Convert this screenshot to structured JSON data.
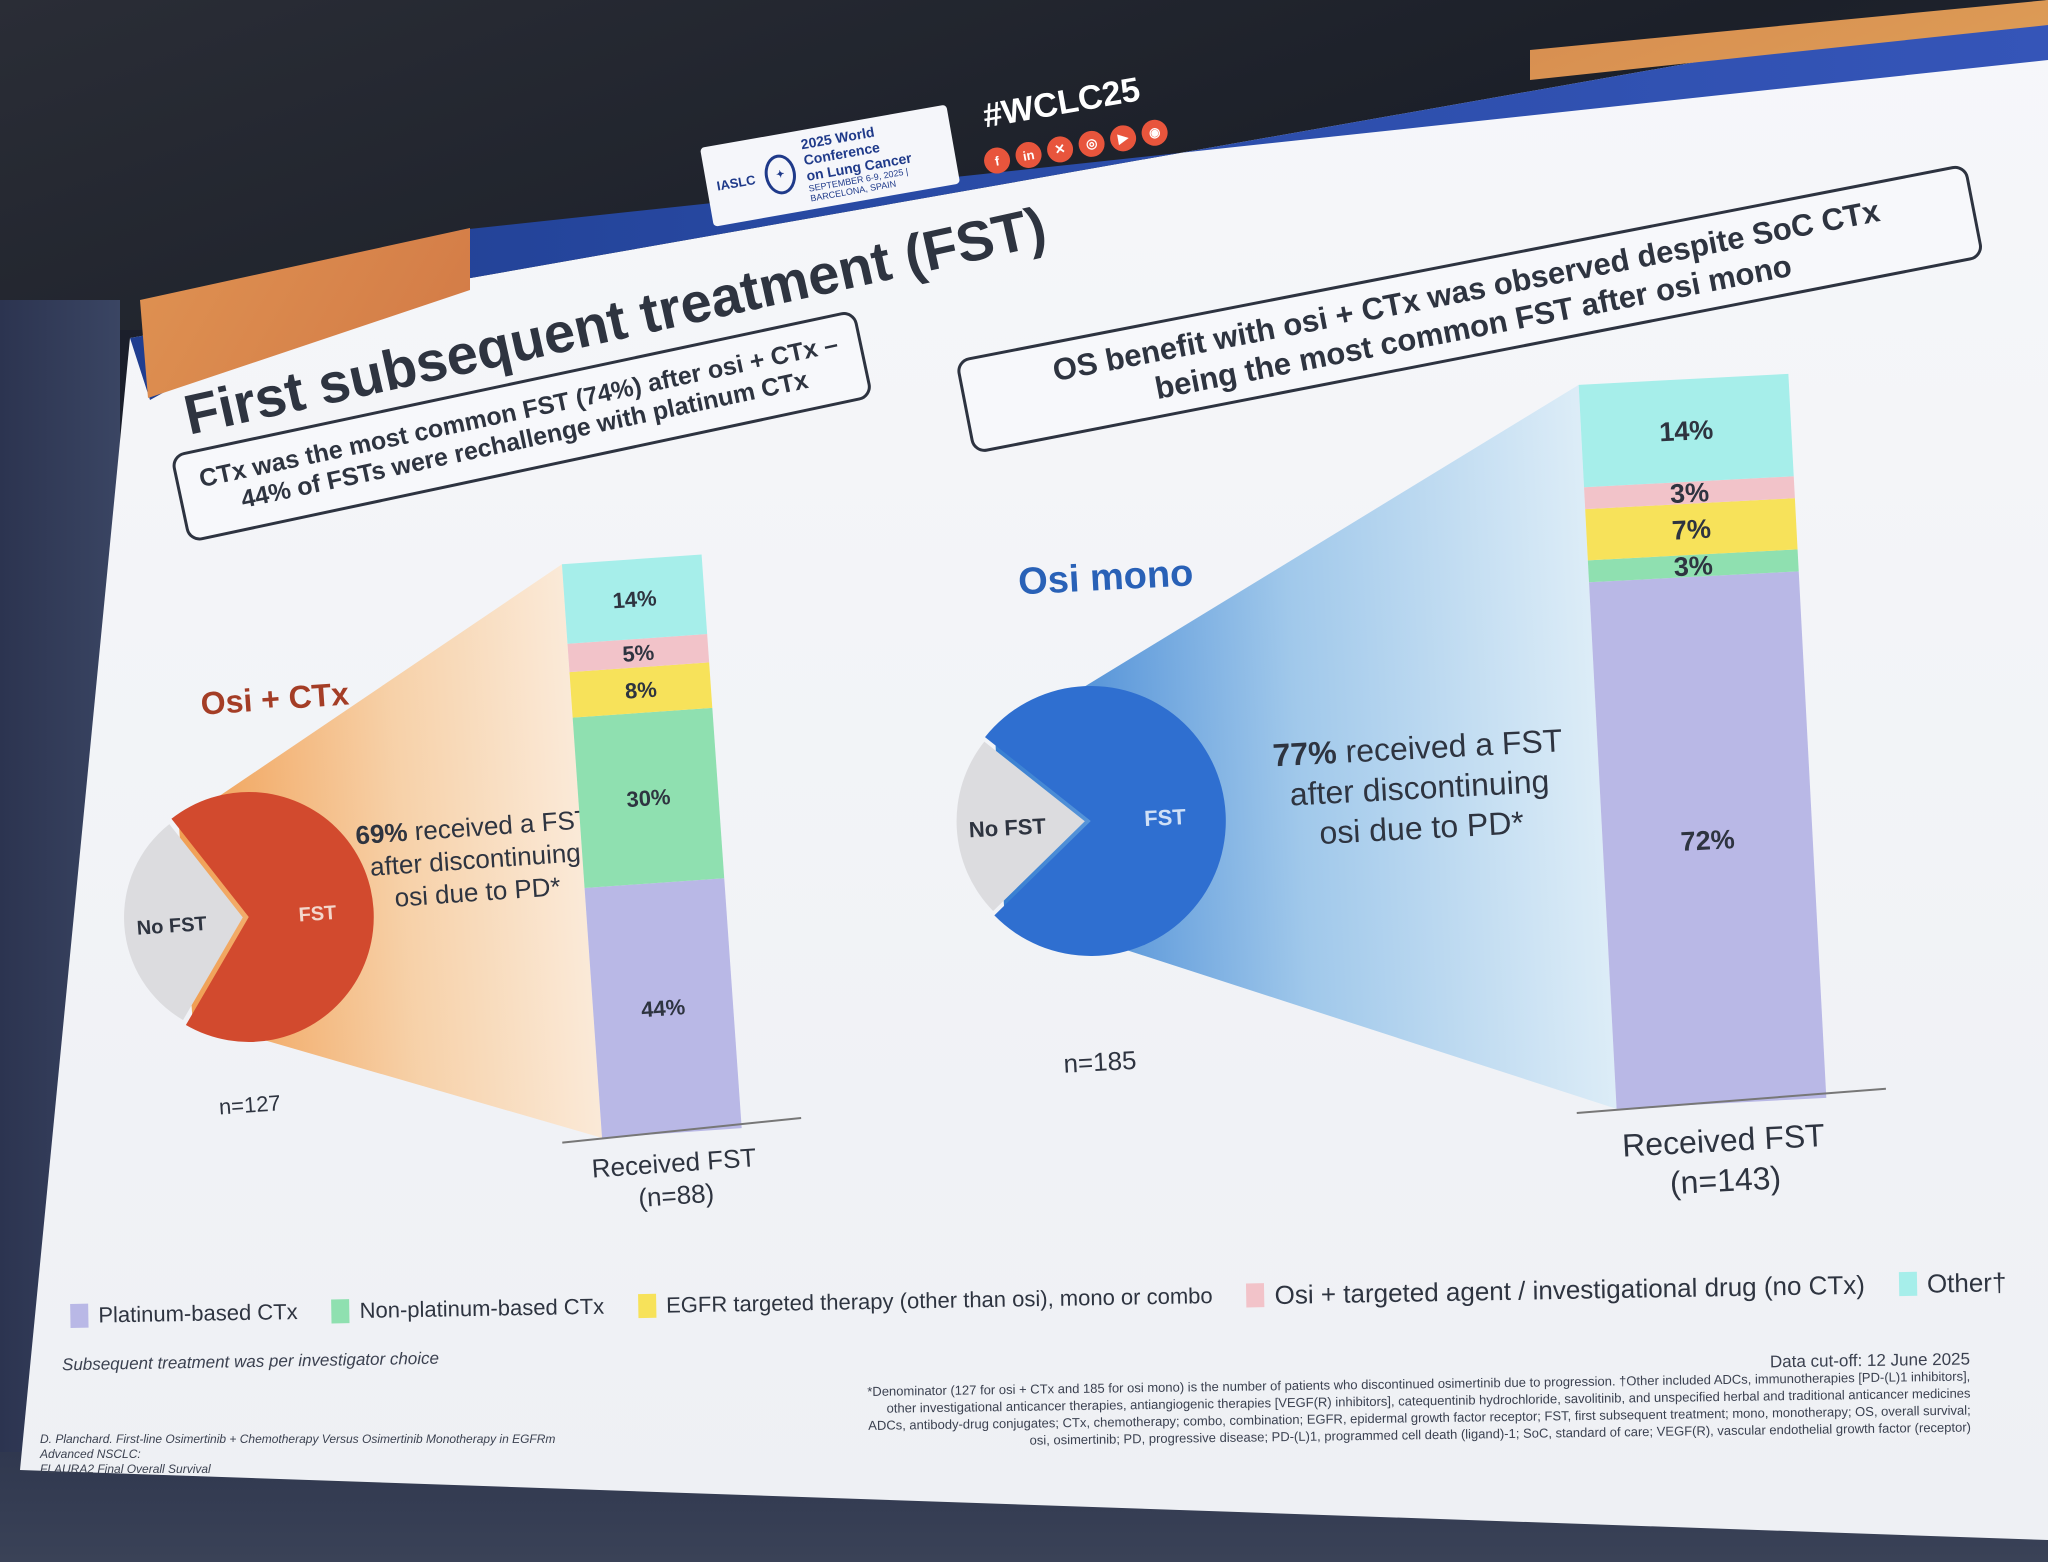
{
  "header": {
    "logo_org": "IASLC",
    "conference_line1": "2025 World Conference",
    "conference_line2": "on Lung Cancer",
    "conference_dates": "SEPTEMBER 6-9, 2025 | BARCELONA, SPAIN",
    "hashtag": "#WCLC25",
    "social_icons": [
      "facebook-icon",
      "linkedin-icon",
      "x-icon",
      "instagram-icon",
      "youtube-icon",
      "podcast-icon"
    ]
  },
  "title": "First subsequent treatment (FST)",
  "callout_left": {
    "line1": "CTx was the most common FST (74%) after osi + CTx –",
    "line2": "44% of FSTs were rechallenge with platinum CTx"
  },
  "callout_right": {
    "line1": "OS benefit with osi + CTx was observed despite SoC CTx",
    "line2": "being the most common FST after osi mono"
  },
  "colors": {
    "platinum": "#b9b8e6",
    "non_platinum": "#8fe0b0",
    "egfr": "#f7e25a",
    "osi_targeted": "#f2c3c9",
    "other": "#a6eeea",
    "osi_ctx_accent": "#d24a2e",
    "osi_mono_accent": "#2f6fd0"
  },
  "chart_data": [
    {
      "type": "pie",
      "title": "Osi + CTx",
      "n_label": "n=127",
      "slices": [
        {
          "name": "FST",
          "value": 69
        },
        {
          "name": "No FST",
          "value": 31
        }
      ],
      "annotation": {
        "pct": "69%",
        "text1": "received a FST",
        "text2": "after discontinuing",
        "text3": "osi due to PD*"
      }
    },
    {
      "type": "bar",
      "stacked": true,
      "xlabel_line1": "Received FST",
      "xlabel_line2": "(n=88)",
      "series": [
        {
          "name": "Platinum-based CTx",
          "value": 44,
          "label": "44%"
        },
        {
          "name": "Non-platinum-based CTx",
          "value": 30,
          "label": "30%"
        },
        {
          "name": "EGFR targeted therapy (other than osi), mono or combo",
          "value": 8,
          "label": "8%"
        },
        {
          "name": "Osi + targeted agent / investigational drug (no CTx)",
          "value": 5,
          "label": "5%"
        },
        {
          "name": "Other†",
          "value": 14,
          "label": "14%"
        }
      ]
    },
    {
      "type": "pie",
      "title": "Osi mono",
      "n_label": "n=185",
      "slices": [
        {
          "name": "FST",
          "value": 77
        },
        {
          "name": "No FST",
          "value": 23
        }
      ],
      "annotation": {
        "pct": "77%",
        "text1": "received a FST",
        "text2": "after discontinuing",
        "text3": "osi due to PD*"
      }
    },
    {
      "type": "bar",
      "stacked": true,
      "xlabel_line1": "Received FST",
      "xlabel_line2": "(n=143)",
      "series": [
        {
          "name": "Platinum-based CTx",
          "value": 72,
          "label": "72%"
        },
        {
          "name": "Non-platinum-based CTx",
          "value": 3,
          "label": "3%"
        },
        {
          "name": "EGFR targeted therapy (other than osi), mono or combo",
          "value": 7,
          "label": "7%"
        },
        {
          "name": "Osi + targeted agent / investigational drug (no CTx)",
          "value": 3,
          "label": "3%"
        },
        {
          "name": "Other†",
          "value": 14,
          "label": "14%"
        }
      ]
    }
  ],
  "legend": [
    {
      "label": "Platinum-based CTx",
      "color": "#b9b8e6"
    },
    {
      "label": "Non-platinum-based CTx",
      "color": "#8fe0b0"
    },
    {
      "label": "EGFR targeted therapy (other than osi), mono or combo",
      "color": "#f7e25a"
    },
    {
      "label": "Osi + targeted agent / investigational drug (no CTx)",
      "color": "#f2c3c9"
    },
    {
      "label": "Other†",
      "color": "#a6eeea"
    }
  ],
  "note": "Subsequent treatment was per investigator choice",
  "data_cutoff": "Data cut-off: 12 June 2025",
  "footnotes": [
    "*Denominator (127 for osi + CTx and 185 for osi mono) is the number of patients who discontinued osimertinib due to progression. †Other included ADCs, immunotherapies [PD-(L)1 inhibitors],",
    "other investigational anticancer therapies, antiangiogenic therapies [VEGF(R) inhibitors], catequentinib hydrochloride, savolitinib, and unspecified herbal and traditional anticancer medicines",
    "ADCs, antibody-drug conjugates; CTx, chemotherapy; combo, combination; EGFR, epidermal growth factor receptor; FST, first subsequent treatment; mono, monotherapy; OS, overall survival;",
    "osi, osimertinib; PD, progressive disease; PD-(L)1, programmed cell death (ligand)-1; SoC, standard of care; VEGF(R), vascular endothelial growth factor (receptor)"
  ],
  "reference": {
    "line1": "D. Planchard. First-line Osimertinib + Chemotherapy Versus Osimertinib Monotherapy in EGFRm Advanced NSCLC:",
    "line2": "FLAURA2 Final Overall Survival"
  }
}
